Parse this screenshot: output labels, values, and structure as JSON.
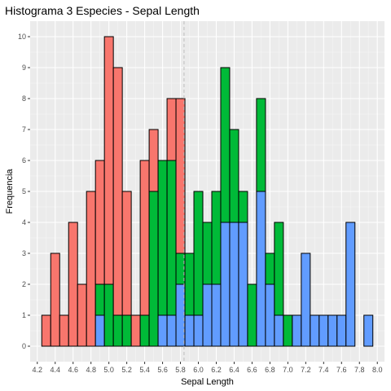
{
  "chart_data": {
    "type": "bar",
    "title": "Histograma 3 Especies - Sepal Length",
    "xlabel": "Sepal Length",
    "ylabel": "Frequencia",
    "x_ticks": [
      "4.2",
      "4.4",
      "4.6",
      "4.8",
      "5.0",
      "5.2",
      "5.4",
      "5.6",
      "5.8",
      "6.0",
      "6.2",
      "6.4",
      "6.6",
      "6.8",
      "7.0",
      "7.2",
      "7.4",
      "7.6",
      "7.8",
      "8.0"
    ],
    "y_ticks": [
      "0",
      "1",
      "2",
      "3",
      "4",
      "5",
      "6",
      "7",
      "8",
      "9",
      "10"
    ],
    "xlim": [
      4.12,
      8.08
    ],
    "ylim": [
      -0.5,
      10.5
    ],
    "bin_width": 0.1,
    "stacked": true,
    "grid": true,
    "legend": "none",
    "mean_line_x": 5.84,
    "bins_x": [
      4.3,
      4.4,
      4.5,
      4.6,
      4.7,
      4.8,
      4.9,
      5.0,
      5.1,
      5.2,
      5.3,
      5.4,
      5.5,
      5.6,
      5.7,
      5.8,
      5.9,
      6.0,
      6.1,
      6.2,
      6.3,
      6.4,
      6.5,
      6.6,
      6.7,
      6.8,
      6.9,
      7.0,
      7.1,
      7.2,
      7.3,
      7.4,
      7.5,
      7.6,
      7.7,
      7.8,
      7.9
    ],
    "series": [
      {
        "color": "#619CFF",
        "values": [
          0,
          0,
          0,
          0,
          0,
          0,
          1,
          0,
          0,
          0,
          0,
          0,
          0,
          1,
          1,
          2,
          1,
          1,
          2,
          2,
          4,
          4,
          4,
          0,
          5,
          2,
          1,
          0,
          1,
          3,
          1,
          1,
          1,
          1,
          4,
          0,
          1
        ]
      },
      {
        "color": "#00BA38",
        "values": [
          0,
          0,
          0,
          0,
          0,
          0,
          1,
          2,
          1,
          1,
          0,
          1,
          5,
          5,
          5,
          1,
          2,
          4,
          2,
          3,
          5,
          3,
          1,
          2,
          3,
          1,
          3,
          1,
          0,
          0,
          0,
          0,
          0,
          0,
          0,
          0,
          0
        ]
      },
      {
        "color": "#F8766D",
        "values": [
          1,
          3,
          1,
          4,
          2,
          5,
          4,
          8,
          8,
          4,
          1,
          5,
          2,
          0,
          2,
          5,
          0,
          0,
          0,
          0,
          0,
          0,
          0,
          0,
          0,
          0,
          0,
          0,
          0,
          0,
          0,
          0,
          0,
          0,
          0,
          0,
          0
        ]
      }
    ]
  }
}
